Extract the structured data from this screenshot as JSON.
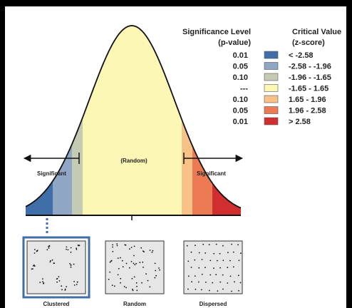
{
  "legend": {
    "headers": {
      "significance": [
        "Significance Level",
        "(p-value)"
      ],
      "critical": [
        "Critical Value",
        "(z-score)"
      ]
    },
    "rows": [
      {
        "p": "0.01",
        "z": "< -2.58",
        "color": "#3f6ea8"
      },
      {
        "p": "0.05",
        "z": "-2.58 - -1.96",
        "color": "#8fa6c4"
      },
      {
        "p": "0.10",
        "z": "-1.96 - -1.65",
        "color": "#c5cab2"
      },
      {
        "p": "---",
        "z": "-1.65 - 1.65",
        "color": "#fdf7b6"
      },
      {
        "p": "0.10",
        "z": "1.65 - 1.96",
        "color": "#f7c187"
      },
      {
        "p": "0.05",
        "z": "1.96 - 2.58",
        "color": "#ec7a52"
      },
      {
        "p": "0.01",
        "z": "> 2.58",
        "color": "#d12f2f"
      }
    ]
  },
  "curve": {
    "center_label": "(Random)",
    "left_label": "Significant",
    "right_label": "Significant",
    "fill_color": "#fdf7b6"
  },
  "patterns": [
    {
      "label": "Clustered",
      "type": "clustered",
      "selected": true
    },
    {
      "label": "Random",
      "type": "random",
      "selected": false
    },
    {
      "label": "Dispersed",
      "type": "dispersed",
      "selected": false
    }
  ]
}
